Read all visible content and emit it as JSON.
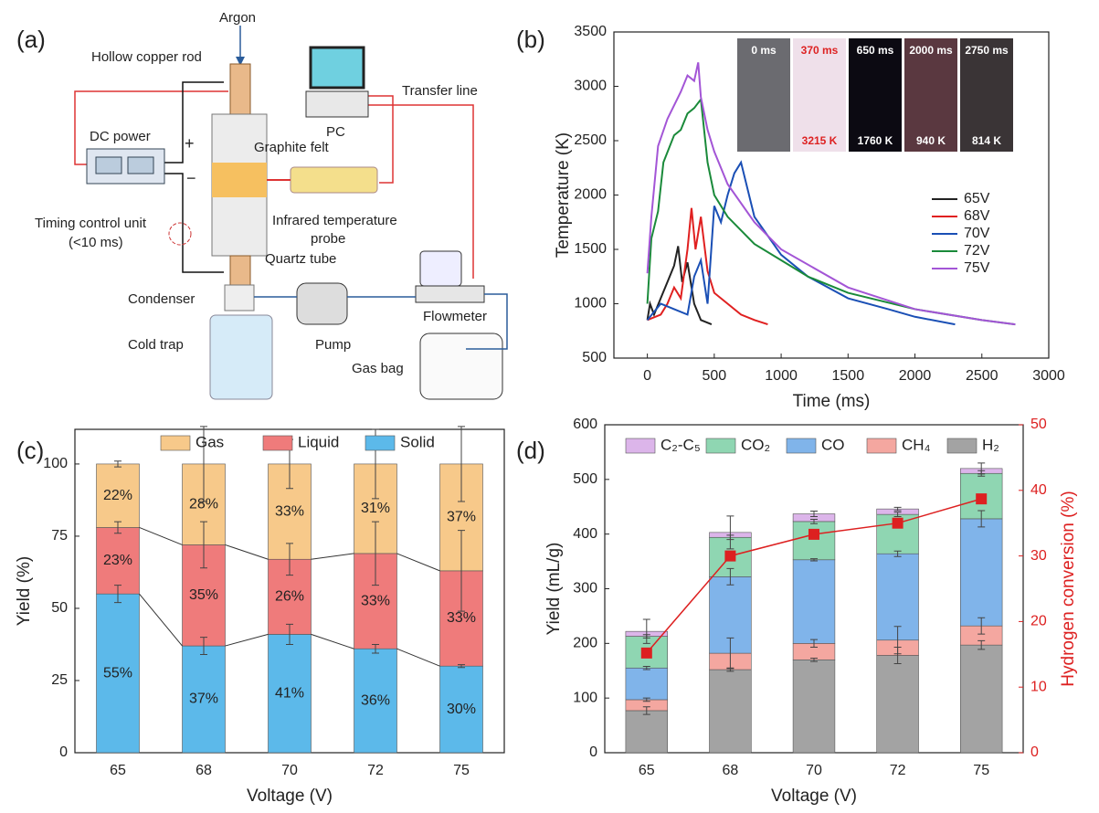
{
  "diagram": {
    "label": "(a)",
    "texts": [
      "Argon",
      "Hollow copper rod",
      "PC",
      "Transfer line",
      "DC power",
      "+",
      "−",
      "Graphite felt",
      "Timing control unit",
      "(<10 ms)",
      "Infrared temperature",
      "probe",
      "Quartz tube",
      "Condenser",
      "Pump",
      "Flowmeter",
      "Cold trap",
      "Gas bag"
    ]
  },
  "chart_data": [
    {
      "type": "line",
      "label": "(b)",
      "xlabel": "Time (ms)",
      "ylabel": "Temperature (K)",
      "xlim": [
        -250,
        3000
      ],
      "xticks": [
        0,
        500,
        1000,
        1500,
        2000,
        2500,
        3000
      ],
      "ylim": [
        500,
        3500
      ],
      "yticks": [
        500,
        1000,
        1500,
        2000,
        2500,
        3000,
        3500
      ],
      "legend": "right",
      "series": [
        {
          "name": "65V",
          "color": "#222222",
          "x": [
            0,
            20,
            50,
            100,
            150,
            200,
            230,
            260,
            300,
            350,
            400,
            480
          ],
          "values": [
            850,
            1000,
            900,
            1050,
            1200,
            1350,
            1530,
            1200,
            1380,
            1000,
            850,
            810
          ]
        },
        {
          "name": "68V",
          "color": "#e02020",
          "x": [
            0,
            100,
            150,
            200,
            250,
            300,
            330,
            360,
            400,
            450,
            500,
            600,
            700,
            800,
            900
          ],
          "values": [
            850,
            900,
            1000,
            1150,
            1050,
            1500,
            1880,
            1500,
            1800,
            1300,
            1100,
            1000,
            900,
            850,
            810
          ]
        },
        {
          "name": "70V",
          "color": "#1a4fb5",
          "x": [
            0,
            100,
            200,
            300,
            350,
            400,
            450,
            500,
            550,
            600,
            650,
            700,
            800,
            1000,
            1200,
            1500,
            1800,
            2000,
            2300
          ],
          "values": [
            850,
            1000,
            950,
            900,
            1250,
            1400,
            1000,
            1900,
            1750,
            2000,
            2200,
            2300,
            1800,
            1450,
            1250,
            1050,
            950,
            880,
            810
          ]
        },
        {
          "name": "72V",
          "color": "#1a8a3a",
          "x": [
            0,
            30,
            80,
            120,
            200,
            250,
            300,
            350,
            400,
            450,
            500,
            600,
            800,
            1000,
            1200,
            1500,
            2000,
            2500,
            2750
          ],
          "values": [
            1000,
            1600,
            1850,
            2300,
            2550,
            2600,
            2750,
            2800,
            2880,
            2300,
            2000,
            1800,
            1550,
            1400,
            1250,
            1100,
            950,
            850,
            810
          ]
        },
        {
          "name": "75V",
          "color": "#a355d6",
          "x": [
            0,
            30,
            80,
            150,
            250,
            300,
            350,
            380,
            400,
            450,
            500,
            600,
            800,
            1000,
            1500,
            2000,
            2500,
            2750
          ],
          "values": [
            1280,
            1800,
            2450,
            2700,
            2950,
            3100,
            3050,
            3220,
            2900,
            2600,
            2400,
            2100,
            1750,
            1500,
            1150,
            950,
            850,
            810
          ]
        }
      ],
      "inset": {
        "times": [
          "0 ms",
          "370 ms",
          "650 ms",
          "2000 ms",
          "2750 ms"
        ],
        "temperatures": [
          null,
          "3215 K",
          "1760 K",
          "940 K",
          "814 K"
        ]
      }
    },
    {
      "type": "bar",
      "label": "(c)",
      "stacked": true,
      "connect": true,
      "legend": "top",
      "xlabel": "Voltage (V)",
      "ylabel": "Yield (%)",
      "categories": [
        "65",
        "68",
        "70",
        "72",
        "75"
      ],
      "ylim": [
        0,
        112
      ],
      "yticks": [
        0,
        25,
        50,
        75,
        100
      ],
      "series": [
        {
          "name": "Solid",
          "color": "#5cb9ea",
          "values": [
            55,
            37,
            41,
            36,
            30
          ],
          "value_labels": [
            "55%",
            "37%",
            "41%",
            "36%",
            "30%"
          ],
          "errors": [
            3,
            3,
            3.5,
            1.5,
            0.5
          ]
        },
        {
          "name": "Liquid",
          "color": "#ef7b7b",
          "values": [
            23,
            35,
            26,
            33,
            33
          ],
          "value_labels": [
            "23%",
            "35%",
            "26%",
            "33%",
            "33%"
          ],
          "errors": [
            2,
            8,
            5.5,
            11,
            14
          ]
        },
        {
          "name": "Gas",
          "color": "#f7c98a",
          "values": [
            22,
            28,
            33,
            31,
            37
          ],
          "value_labels": [
            "22%",
            "28%",
            "33%",
            "31%",
            "37%"
          ],
          "errors": [
            1,
            13,
            8.5,
            12,
            13
          ]
        }
      ]
    },
    {
      "type": "bar",
      "label": "(d)",
      "stacked": true,
      "legend": "top",
      "xlabel": "Voltage (V)",
      "ylabel": "Yield (mL/g)",
      "y2label": "Hydrogen conversion (%)",
      "categories": [
        "65",
        "68",
        "70",
        "72",
        "75"
      ],
      "ylim": [
        0,
        600
      ],
      "yticks": [
        0,
        100,
        200,
        300,
        400,
        500,
        600
      ],
      "y2lim": [
        0,
        50
      ],
      "y2ticks": [
        0,
        10,
        20,
        30,
        40,
        50
      ],
      "series": [
        {
          "name": "H₂",
          "color": "#a3a3a3",
          "values": [
            77,
            152,
            170,
            178,
            197
          ],
          "errors": [
            7,
            3,
            3,
            15,
            8
          ]
        },
        {
          "name": "CH₄",
          "color": "#f4a7a0",
          "values": [
            20,
            30,
            30,
            28,
            35
          ],
          "errors": [
            3,
            28,
            7,
            25,
            15
          ]
        },
        {
          "name": "CO",
          "color": "#80b4ea",
          "values": [
            58,
            140,
            153,
            158,
            196
          ],
          "errors": [
            3,
            15,
            2,
            5,
            15
          ]
        },
        {
          "name": "CO₂",
          "color": "#8fd6b2",
          "values": [
            58,
            72,
            70,
            72,
            83
          ],
          "errors": [
            3,
            4,
            4,
            4,
            5
          ]
        },
        {
          "name": "C₂-C₅",
          "color": "#dcb5ea",
          "values": [
            9,
            9,
            14,
            10,
            9
          ],
          "errors": [
            22,
            30,
            5,
            3,
            10
          ]
        },
        {
          "type": "line",
          "axis": "y2",
          "color": "#dd2020",
          "marker": "square",
          "values": [
            15.2,
            30,
            33.3,
            35,
            38.7
          ]
        }
      ]
    }
  ]
}
